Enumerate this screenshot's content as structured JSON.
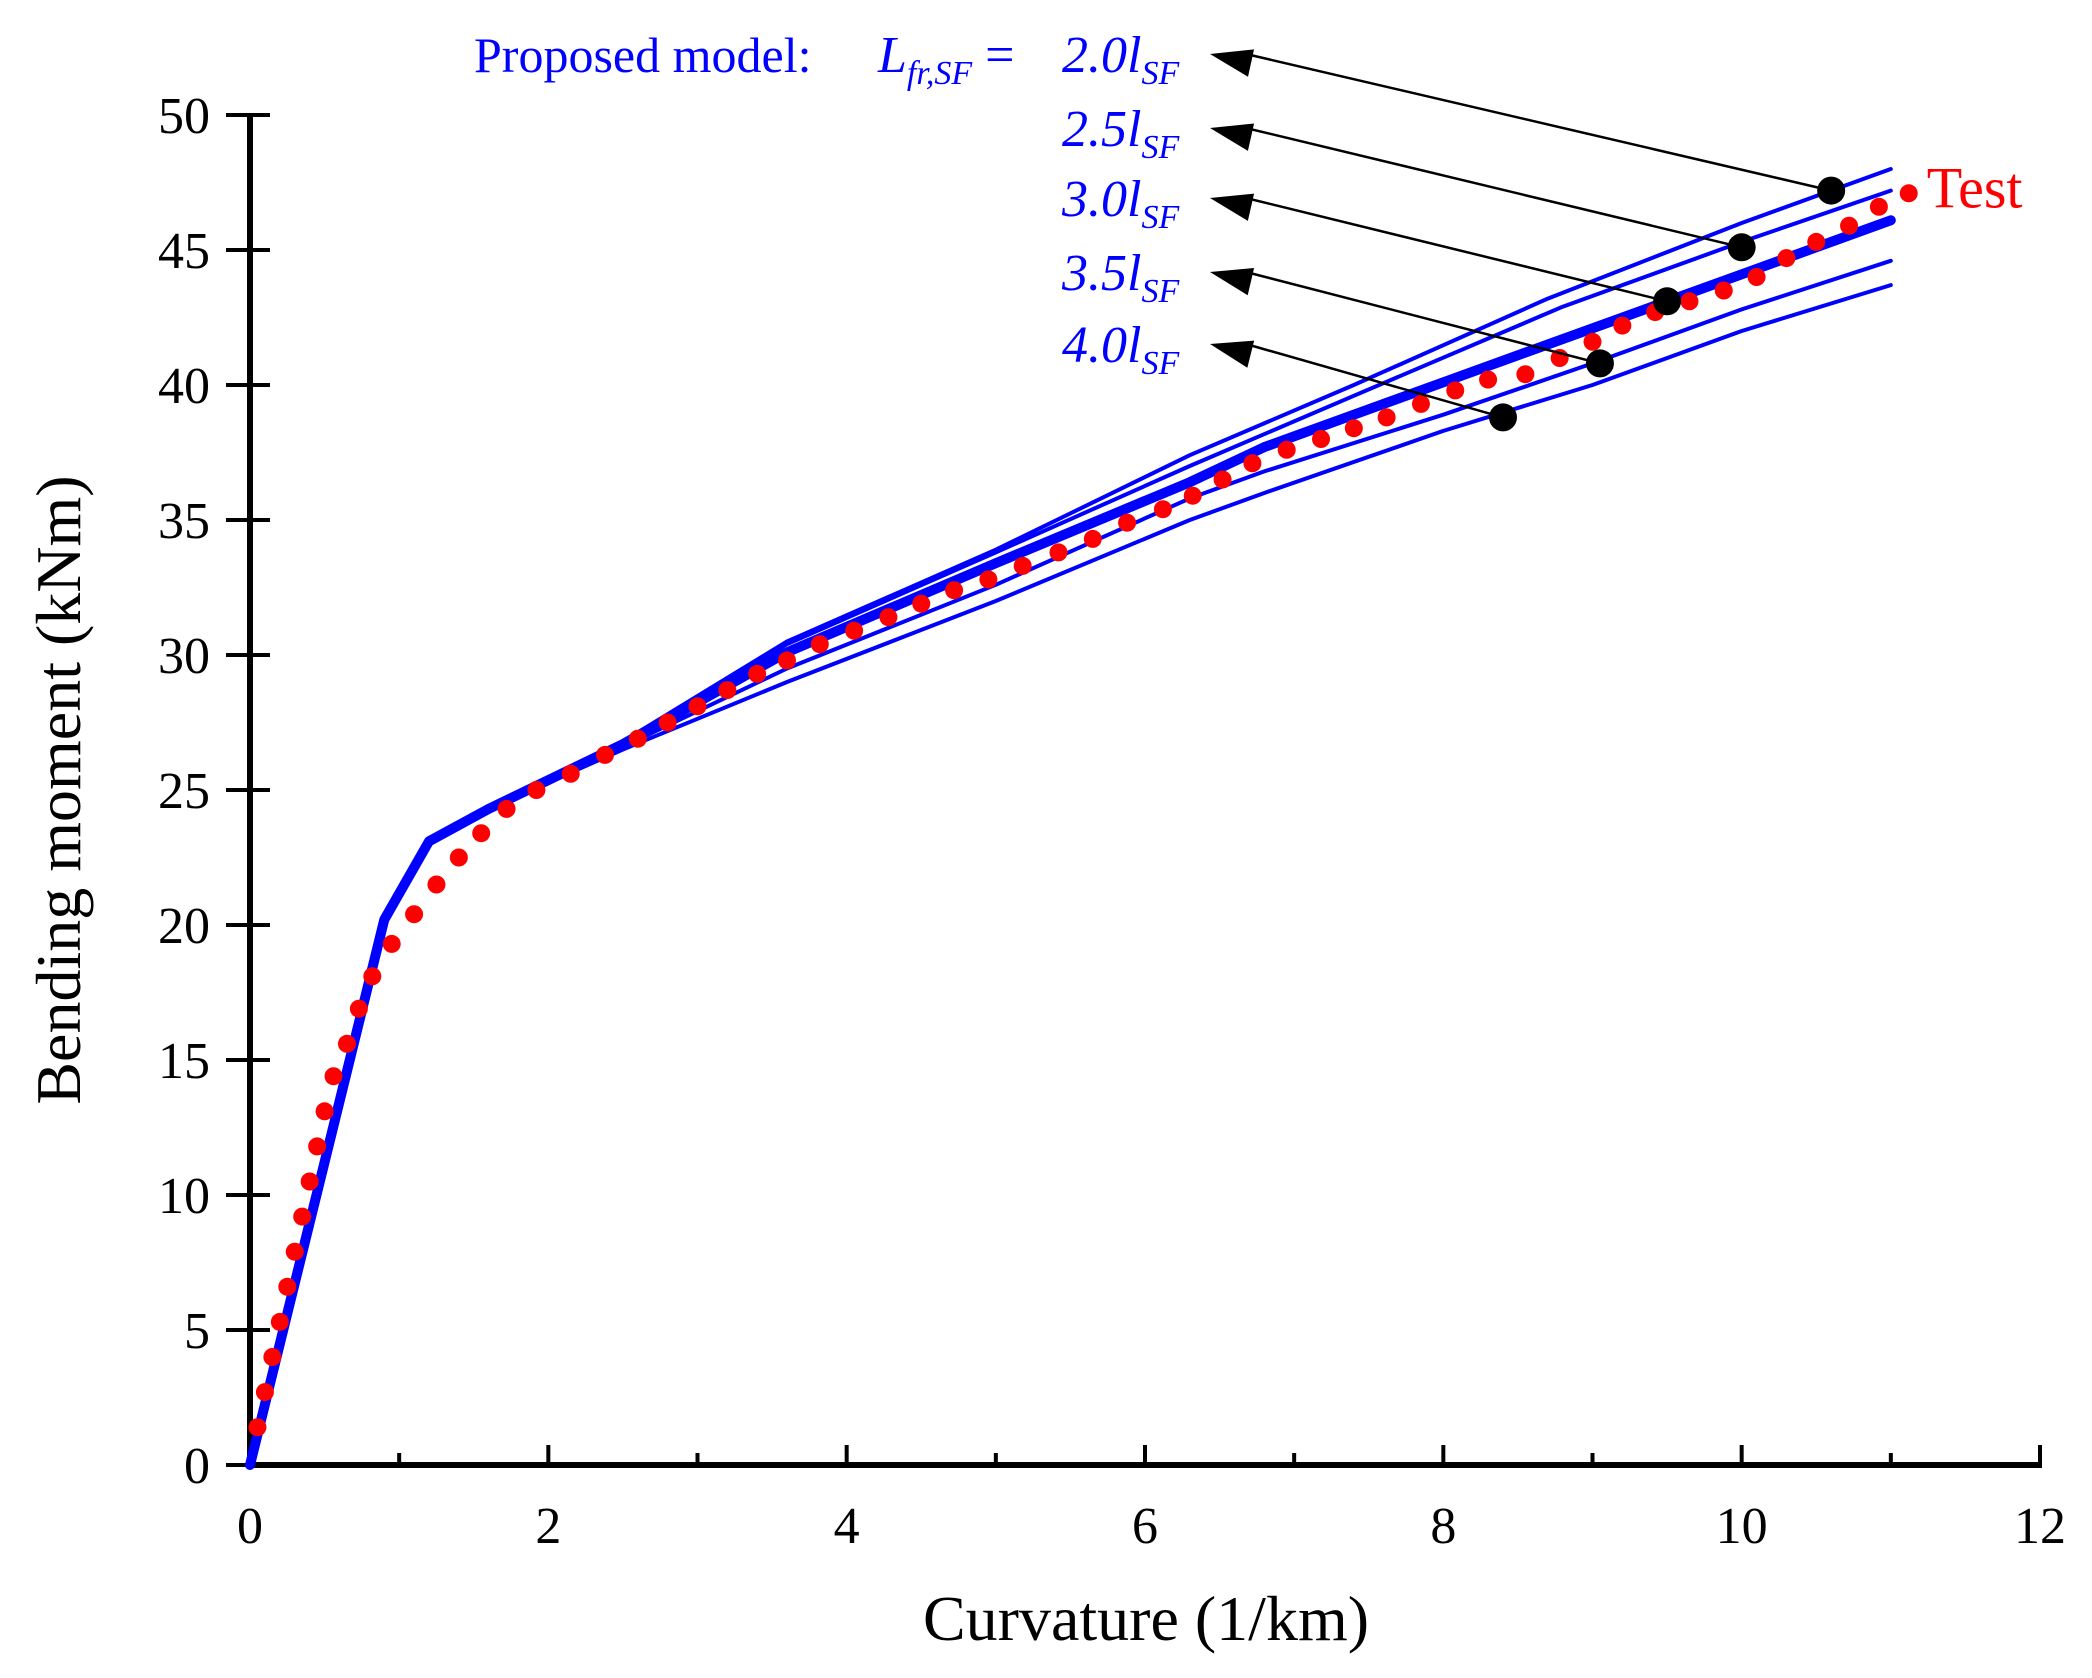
{
  "chart_data": {
    "type": "line",
    "title": "",
    "xlabel": "Curvature (1/km)",
    "ylabel": "Bending moment (kNm)",
    "xlim": [
      0,
      12
    ],
    "ylim": [
      0,
      50
    ],
    "xticks": [
      0,
      2,
      4,
      6,
      8,
      10,
      12
    ],
    "yticks": [
      0,
      5,
      10,
      15,
      20,
      25,
      30,
      35,
      40,
      45,
      50
    ],
    "grid": false,
    "legend_header": "Proposed model:",
    "legend_symbol_main": "L",
    "legend_symbol_sub": "fr,SF",
    "legend_equals": " =",
    "series": [
      {
        "name": "2.0l_SF",
        "label_prefix": "2.0",
        "label_symbol": "l",
        "label_sub": "SF",
        "color": "#0000ff",
        "style": "thin",
        "marker_at": [
          10.6,
          47.2
        ],
        "points": [
          [
            0,
            0
          ],
          [
            0.9,
            20.2
          ],
          [
            1.2,
            23.1
          ],
          [
            1.6,
            24.3
          ],
          [
            2.5,
            26.8
          ],
          [
            3.6,
            30.5
          ],
          [
            5.0,
            33.9
          ],
          [
            6.3,
            37.4
          ],
          [
            7.4,
            40.0
          ],
          [
            8.7,
            43.2
          ],
          [
            10.0,
            46.0
          ],
          [
            11.0,
            48.0
          ]
        ]
      },
      {
        "name": "2.5l_SF",
        "label_prefix": "2.5",
        "label_symbol": "l",
        "label_sub": "SF",
        "color": "#0000ff",
        "style": "thin",
        "marker_at": [
          10.0,
          45.1
        ],
        "points": [
          [
            0,
            0
          ],
          [
            0.9,
            20.2
          ],
          [
            1.2,
            23.1
          ],
          [
            1.6,
            24.3
          ],
          [
            2.5,
            26.8
          ],
          [
            3.6,
            30.4
          ],
          [
            5.0,
            33.8
          ],
          [
            6.3,
            37.0
          ],
          [
            7.4,
            39.6
          ],
          [
            8.8,
            42.9
          ],
          [
            10.0,
            45.3
          ],
          [
            11.0,
            47.2
          ]
        ]
      },
      {
        "name": "3.0l_SF",
        "label_prefix": "3.0",
        "label_symbol": "l",
        "label_sub": "SF",
        "color": "#0000ff",
        "style": "thick",
        "marker_at": [
          9.5,
          43.1
        ],
        "points": [
          [
            0,
            0
          ],
          [
            0.9,
            20.2
          ],
          [
            1.2,
            23.1
          ],
          [
            1.6,
            24.3
          ],
          [
            2.5,
            26.7
          ],
          [
            3.6,
            30.1
          ],
          [
            5.0,
            33.4
          ],
          [
            6.3,
            36.4
          ],
          [
            6.8,
            37.7
          ],
          [
            8.0,
            40.1
          ],
          [
            9.0,
            42.1
          ],
          [
            10.0,
            44.1
          ],
          [
            11.0,
            46.1
          ]
        ]
      },
      {
        "name": "3.5l_SF",
        "label_prefix": "3.5",
        "label_symbol": "l",
        "label_sub": "SF",
        "color": "#0000ff",
        "style": "thin",
        "marker_at": [
          9.05,
          40.8
        ],
        "points": [
          [
            0,
            0
          ],
          [
            0.9,
            20.2
          ],
          [
            1.2,
            23.1
          ],
          [
            1.6,
            24.3
          ],
          [
            2.5,
            26.6
          ],
          [
            3.6,
            29.5
          ],
          [
            5.0,
            32.6
          ],
          [
            6.3,
            35.8
          ],
          [
            6.8,
            36.8
          ],
          [
            8.0,
            38.9
          ],
          [
            9.0,
            40.8
          ],
          [
            10.0,
            42.8
          ],
          [
            11.0,
            44.6
          ]
        ]
      },
      {
        "name": "4.0l_SF",
        "label_prefix": "4.0",
        "label_symbol": "l",
        "label_sub": "SF",
        "color": "#0000ff",
        "style": "thin",
        "marker_at": [
          8.4,
          38.8
        ],
        "points": [
          [
            0,
            0
          ],
          [
            0.9,
            20.2
          ],
          [
            1.2,
            23.1
          ],
          [
            1.6,
            24.3
          ],
          [
            2.5,
            26.5
          ],
          [
            3.6,
            29.0
          ],
          [
            5.0,
            32.0
          ],
          [
            6.3,
            35.0
          ],
          [
            6.8,
            36.0
          ],
          [
            8.0,
            38.3
          ],
          [
            9.0,
            40.0
          ],
          [
            10.0,
            42.0
          ],
          [
            11.0,
            43.7
          ]
        ]
      },
      {
        "name": "Test",
        "label": "Test",
        "color": "#ff0000",
        "style": "dotted",
        "points": [
          [
            0.05,
            1.4
          ],
          [
            0.1,
            2.7
          ],
          [
            0.15,
            4.0
          ],
          [
            0.2,
            5.3
          ],
          [
            0.25,
            6.6
          ],
          [
            0.3,
            7.9
          ],
          [
            0.35,
            9.2
          ],
          [
            0.4,
            10.5
          ],
          [
            0.45,
            11.8
          ],
          [
            0.5,
            13.1
          ],
          [
            0.56,
            14.4
          ],
          [
            0.65,
            15.6
          ],
          [
            0.73,
            16.9
          ],
          [
            0.82,
            18.1
          ],
          [
            0.95,
            19.3
          ],
          [
            1.1,
            20.4
          ],
          [
            1.25,
            21.5
          ],
          [
            1.4,
            22.5
          ],
          [
            1.55,
            23.4
          ],
          [
            1.72,
            24.3
          ],
          [
            1.92,
            25.0
          ],
          [
            2.15,
            25.6
          ],
          [
            2.38,
            26.3
          ],
          [
            2.6,
            26.9
          ],
          [
            2.8,
            27.5
          ],
          [
            3.0,
            28.1
          ],
          [
            3.2,
            28.7
          ],
          [
            3.4,
            29.3
          ],
          [
            3.6,
            29.8
          ],
          [
            3.82,
            30.4
          ],
          [
            4.05,
            30.9
          ],
          [
            4.28,
            31.4
          ],
          [
            4.5,
            31.9
          ],
          [
            4.72,
            32.4
          ],
          [
            4.95,
            32.8
          ],
          [
            5.18,
            33.3
          ],
          [
            5.42,
            33.8
          ],
          [
            5.65,
            34.3
          ],
          [
            5.88,
            34.9
          ],
          [
            6.12,
            35.4
          ],
          [
            6.32,
            35.9
          ],
          [
            6.52,
            36.5
          ],
          [
            6.72,
            37.1
          ],
          [
            6.95,
            37.6
          ],
          [
            7.18,
            38.0
          ],
          [
            7.4,
            38.4
          ],
          [
            7.62,
            38.8
          ],
          [
            7.85,
            39.3
          ],
          [
            8.08,
            39.8
          ],
          [
            8.3,
            40.2
          ],
          [
            8.55,
            40.4
          ],
          [
            8.78,
            41.0
          ],
          [
            9.0,
            41.6
          ],
          [
            9.2,
            42.2
          ],
          [
            9.42,
            42.7
          ],
          [
            9.65,
            43.1
          ],
          [
            9.88,
            43.5
          ],
          [
            10.1,
            44.0
          ],
          [
            10.3,
            44.7
          ],
          [
            10.5,
            45.3
          ],
          [
            10.72,
            45.9
          ],
          [
            10.92,
            46.6
          ],
          [
            11.12,
            47.1
          ]
        ]
      }
    ]
  }
}
